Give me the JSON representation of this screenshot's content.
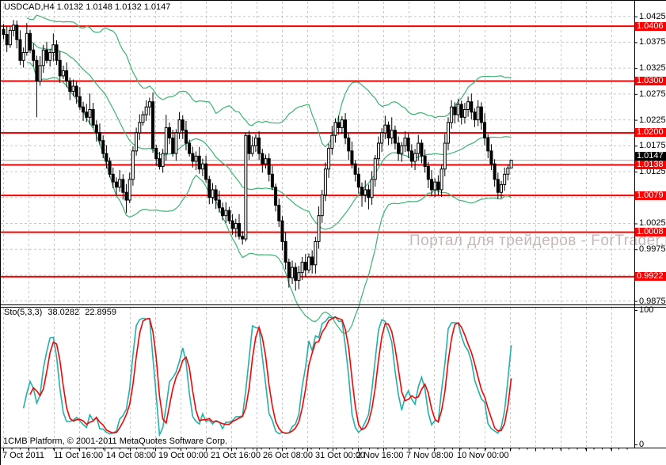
{
  "window": {
    "symbol_period": "USDCAD,H4",
    "quote_line": "1.0132 1.0148 1.0132 1.0147"
  },
  "watermark_text": "Портал для трейдеров - ForTrader.ru",
  "footer_text": "1CMB Platform, © 2001-2011 MetaQuotes Software Corp.",
  "colors": {
    "background": "#ffffff",
    "grid": "#c8c8c8",
    "level_line": "#ff0000",
    "current_price_line": "#a9a9a9",
    "candle_bull_fill": "#ffffff",
    "candle_bear_fill": "#000000",
    "candle_outline": "#000000",
    "bollinger": "#3cb371",
    "sto_main": "#20b2aa",
    "sto_signal": "#ff0000",
    "badge_level_bg": "#ff0000",
    "badge_current_bg": "#000000",
    "watermark": "#c6b8b8"
  },
  "chart_data": {
    "type": "candlestick",
    "symbol": "USDCAD",
    "timeframe": "H4",
    "last_quote": {
      "open": "1.0132",
      "high": "1.0148",
      "low": "1.0132",
      "close": "1.0147"
    },
    "price_axis": {
      "plain_ticks": [
        "1.0425",
        "1.0375",
        "1.0325",
        "1.0275",
        "1.0225",
        "1.0175",
        "1.0125",
        "1.0025",
        "0.9975",
        "0.9875"
      ],
      "level_labels": [
        "1.0406",
        "1.0300",
        "1.0200",
        "1.0138",
        "1.0079",
        "1.0008",
        "0.9922"
      ],
      "current_price_label": "1.0147",
      "gridline_step": 0.005,
      "range_top": 1.045,
      "range_bottom": 0.986
    },
    "levels": [
      1.0406,
      1.03,
      1.02,
      1.0138,
      1.0079,
      1.0008,
      0.9922
    ],
    "current_price": 1.0147,
    "x_labels": [
      "7 Oct 2011",
      "11 Oct 16:00",
      "14 Oct 08:00",
      "19 Oct 00:00",
      "21 Oct 16:00",
      "26 Oct 08:00",
      "31 Oct 00:00",
      "2 Nov 16:00",
      "7 Nov 08:00",
      "10 Nov 00:00"
    ],
    "ohlc": [
      [
        1.04,
        1.041,
        1.0381,
        1.039
      ],
      [
        1.039,
        1.0406,
        1.0356,
        1.037
      ],
      [
        1.037,
        1.0405,
        1.0364,
        1.0398
      ],
      [
        1.0398,
        1.0418,
        1.0386,
        1.0408
      ],
      [
        1.0408,
        1.0417,
        1.0363,
        1.038
      ],
      [
        1.038,
        1.0398,
        1.0331,
        1.034
      ],
      [
        1.034,
        1.0365,
        1.0326,
        1.0355
      ],
      [
        1.0355,
        1.0412,
        1.0349,
        1.0392
      ],
      [
        1.0392,
        1.0399,
        1.0354,
        1.036
      ],
      [
        1.036,
        1.0373,
        1.0328,
        1.034
      ],
      [
        1.034,
        1.0349,
        1.023,
        1.03
      ],
      [
        1.03,
        1.0348,
        1.0291,
        1.033
      ],
      [
        1.033,
        1.037,
        1.0316,
        1.036
      ],
      [
        1.036,
        1.0376,
        1.0334,
        1.034
      ],
      [
        1.034,
        1.0362,
        1.0328,
        1.0355
      ],
      [
        1.0355,
        1.0392,
        1.0338,
        1.037
      ],
      [
        1.037,
        1.0379,
        1.0331,
        1.034
      ],
      [
        1.034,
        1.0358,
        1.0296,
        1.031
      ],
      [
        1.031,
        1.033,
        1.0304,
        1.032
      ],
      [
        1.032,
        1.0336,
        1.0288,
        1.03
      ],
      [
        1.03,
        1.0307,
        1.0263,
        1.028
      ],
      [
        1.028,
        1.0303,
        1.0271,
        1.029
      ],
      [
        1.029,
        1.0299,
        1.0256,
        1.027
      ],
      [
        1.027,
        1.0288,
        1.0244,
        1.025
      ],
      [
        1.025,
        1.026,
        1.0223,
        1.024
      ],
      [
        1.024,
        1.0256,
        1.0221,
        1.023
      ],
      [
        1.023,
        1.0276,
        1.0216,
        1.0245
      ],
      [
        1.0245,
        1.0258,
        1.0209,
        1.0215
      ],
      [
        1.0215,
        1.0224,
        1.0183,
        1.02
      ],
      [
        1.02,
        1.0218,
        1.0176,
        1.0185
      ],
      [
        1.0185,
        1.0195,
        1.0151,
        1.016
      ],
      [
        1.016,
        1.0176,
        1.0131,
        1.0145
      ],
      [
        1.0145,
        1.0152,
        1.0114,
        1.012
      ],
      [
        1.012,
        1.0133,
        1.0093,
        1.0105
      ],
      [
        1.0105,
        1.0114,
        1.0078,
        1.0095
      ],
      [
        1.0095,
        1.0128,
        1.0086,
        1.011
      ],
      [
        1.011,
        1.012,
        1.0071,
        1.0085
      ],
      [
        1.0085,
        1.0101,
        1.0045,
        1.007
      ],
      [
        1.007,
        1.0123,
        1.0064,
        1.011
      ],
      [
        1.011,
        1.0174,
        1.0098,
        1.0165
      ],
      [
        1.0165,
        1.021,
        1.0156,
        1.02
      ],
      [
        1.02,
        1.0236,
        1.0186,
        1.022
      ],
      [
        1.022,
        1.0242,
        1.0214,
        1.0235
      ],
      [
        1.0235,
        1.0263,
        1.0223,
        1.025
      ],
      [
        1.025,
        1.0268,
        1.0233,
        1.026
      ],
      [
        1.026,
        1.0278,
        1.0161,
        1.017
      ],
      [
        1.017,
        1.0177,
        1.0136,
        1.015
      ],
      [
        1.015,
        1.0163,
        1.0129,
        1.0135
      ],
      [
        1.0135,
        1.0169,
        1.0123,
        1.016
      ],
      [
        1.016,
        1.0235,
        1.0146,
        1.021
      ],
      [
        1.021,
        1.022,
        1.0178,
        1.019
      ],
      [
        1.019,
        1.0206,
        1.0154,
        1.016
      ],
      [
        1.016,
        1.0207,
        1.0146,
        1.02
      ],
      [
        1.02,
        1.024,
        1.0188,
        1.0225
      ],
      [
        1.0225,
        1.0234,
        1.0188,
        1.0205
      ],
      [
        1.0205,
        1.0223,
        1.0166,
        1.018
      ],
      [
        1.018,
        1.0187,
        1.0154,
        1.016
      ],
      [
        1.016,
        1.0173,
        1.0133,
        1.0145
      ],
      [
        1.0145,
        1.0164,
        1.0128,
        1.0155
      ],
      [
        1.0155,
        1.0173,
        1.0121,
        1.013
      ],
      [
        1.013,
        1.015,
        1.0116,
        1.014
      ],
      [
        1.014,
        1.0156,
        1.0104,
        1.011
      ],
      [
        1.011,
        1.0117,
        1.0062,
        1.0075
      ],
      [
        1.0075,
        1.0103,
        1.0063,
        1.009
      ],
      [
        1.009,
        1.0099,
        1.0053,
        1.007
      ],
      [
        1.007,
        1.0088,
        1.0046,
        1.0055
      ],
      [
        1.0055,
        1.0065,
        1.0031,
        1.004
      ],
      [
        1.004,
        1.0066,
        1.0026,
        1.005
      ],
      [
        1.005,
        1.0057,
        1.0024,
        1.003
      ],
      [
        1.003,
        1.0043,
        1.0003,
        1.0015
      ],
      [
        1.0015,
        1.0034,
        0.9998,
        1.0025
      ],
      [
        1.0025,
        1.0043,
        0.9994,
        1.0
      ],
      [
        1.0,
        1.001,
        0.9984,
        0.9995
      ],
      [
        0.9995,
        1.02,
        0.999,
        1.0195
      ],
      [
        1.0195,
        1.0204,
        1.0148,
        1.016
      ],
      [
        1.016,
        1.0193,
        1.0154,
        1.0175
      ],
      [
        1.0175,
        1.0197,
        1.0163,
        1.019
      ],
      [
        1.019,
        1.0203,
        1.0148,
        1.016
      ],
      [
        1.016,
        1.0169,
        1.0123,
        1.014
      ],
      [
        1.014,
        1.0158,
        1.0131,
        1.015
      ],
      [
        1.015,
        1.016,
        1.0106,
        1.012
      ],
      [
        1.012,
        1.0136,
        1.0089,
        1.0095
      ],
      [
        1.0095,
        1.0102,
        1.0048,
        1.006
      ],
      [
        1.006,
        1.0073,
        1.0018,
        1.003
      ],
      [
        1.003,
        1.0039,
        0.9973,
        0.999
      ],
      [
        0.999,
        1.0008,
        0.9936,
        0.995
      ],
      [
        0.995,
        0.9957,
        0.9901,
        0.992
      ],
      [
        0.992,
        0.9953,
        0.9908,
        0.994
      ],
      [
        0.994,
        0.9949,
        0.9895,
        0.9915
      ],
      [
        0.9915,
        0.9943,
        0.9898,
        0.993
      ],
      [
        0.993,
        0.996,
        0.9916,
        0.995
      ],
      [
        0.995,
        0.9966,
        0.9921,
        0.9935
      ],
      [
        0.9935,
        0.9967,
        0.9929,
        0.996
      ],
      [
        0.996,
        0.9973,
        0.9928,
        0.9945
      ],
      [
        0.9945,
        0.9999,
        0.9928,
        0.999
      ],
      [
        0.999,
        1.0058,
        0.9976,
        1.004
      ],
      [
        1.004,
        1.009,
        1.0026,
        1.008
      ],
      [
        1.008,
        1.0143,
        1.0068,
        1.013
      ],
      [
        1.013,
        1.0179,
        1.0113,
        1.017
      ],
      [
        1.017,
        1.0213,
        1.0158,
        1.0195
      ],
      [
        1.0195,
        1.0228,
        1.0181,
        1.022
      ],
      [
        1.022,
        1.0233,
        1.0196,
        1.021
      ],
      [
        1.021,
        1.0232,
        1.0198,
        1.0225
      ],
      [
        1.0225,
        1.0238,
        1.0178,
        1.019
      ],
      [
        1.019,
        1.0199,
        1.0148,
        1.0165
      ],
      [
        1.0165,
        1.0183,
        1.0131,
        1.014
      ],
      [
        1.014,
        1.0147,
        1.0106,
        1.012
      ],
      [
        1.012,
        1.0133,
        1.0083,
        1.0095
      ],
      [
        1.0095,
        1.0104,
        1.0057,
        1.008
      ],
      [
        1.008,
        1.0108,
        1.0066,
        1.009
      ],
      [
        1.009,
        1.01,
        1.0052,
        1.0075
      ],
      [
        1.0075,
        1.0126,
        1.0061,
        1.011
      ],
      [
        1.011,
        1.0157,
        1.0096,
        1.015
      ],
      [
        1.015,
        1.0193,
        1.0138,
        1.018
      ],
      [
        1.018,
        1.0209,
        1.0163,
        1.02
      ],
      [
        1.02,
        1.0233,
        1.0188,
        1.0215
      ],
      [
        1.0215,
        1.0222,
        1.0176,
        1.019
      ],
      [
        1.019,
        1.023,
        1.0178,
        1.0205
      ],
      [
        1.0205,
        1.0214,
        1.0168,
        1.018
      ],
      [
        1.018,
        1.0193,
        1.0146,
        1.016
      ],
      [
        1.016,
        1.0182,
        1.0144,
        1.0175
      ],
      [
        1.0175,
        1.0203,
        1.0163,
        1.019
      ],
      [
        1.019,
        1.0199,
        1.0151,
        1.0165
      ],
      [
        1.0165,
        1.0178,
        1.0133,
        1.0145
      ],
      [
        1.0145,
        1.0169,
        1.0128,
        1.016
      ],
      [
        1.016,
        1.0196,
        1.0146,
        1.018
      ],
      [
        1.018,
        1.0187,
        1.0141,
        1.0155
      ],
      [
        1.0155,
        1.0168,
        1.0123,
        1.0135
      ],
      [
        1.0135,
        1.0144,
        1.0093,
        1.011
      ],
      [
        1.011,
        1.0128,
        1.0077,
        1.009
      ],
      [
        1.009,
        1.0112,
        1.0076,
        1.0105
      ],
      [
        1.0105,
        1.0118,
        1.0078,
        1.009
      ],
      [
        1.009,
        1.0139,
        1.0076,
        1.013
      ],
      [
        1.013,
        1.0198,
        1.0116,
        1.018
      ],
      [
        1.018,
        1.023,
        1.0166,
        1.022
      ],
      [
        1.022,
        1.0263,
        1.0208,
        1.025
      ],
      [
        1.025,
        1.0259,
        1.0218,
        1.0235
      ],
      [
        1.0235,
        1.0266,
        1.0221,
        1.0255
      ],
      [
        1.0255,
        1.0262,
        1.0216,
        1.023
      ],
      [
        1.023,
        1.0258,
        1.0218,
        1.0245
      ],
      [
        1.0245,
        1.027,
        1.0231,
        1.026
      ],
      [
        1.026,
        1.0276,
        1.0226,
        1.024
      ],
      [
        1.024,
        1.0247,
        1.0211,
        1.0225
      ],
      [
        1.0225,
        1.0263,
        1.0213,
        1.025
      ],
      [
        1.025,
        1.0259,
        1.0206,
        1.022
      ],
      [
        1.022,
        1.0238,
        1.0176,
        1.019
      ],
      [
        1.019,
        1.0197,
        1.0151,
        1.0165
      ],
      [
        1.0165,
        1.0178,
        1.0128,
        1.014
      ],
      [
        1.014,
        1.0149,
        1.0096,
        1.011
      ],
      [
        1.011,
        1.0123,
        1.0072,
        1.0085
      ],
      [
        1.0085,
        1.0107,
        1.0074,
        1.01
      ],
      [
        1.01,
        1.0133,
        1.0088,
        1.012
      ],
      [
        1.012,
        1.0139,
        1.0108,
        1.0132
      ],
      [
        1.0132,
        1.0148,
        1.0132,
        1.0147
      ]
    ],
    "indicators": {
      "bollinger_overlay": {
        "name": "bollinger-bands"
      },
      "stochastic": {
        "label": "Sto(5,3,3)",
        "params": [
          5,
          3,
          3
        ],
        "main_value": "38.0282",
        "signal_value": "22.8959",
        "scale_ticks": [
          "100",
          "0"
        ],
        "range": [
          0,
          100
        ]
      }
    }
  }
}
